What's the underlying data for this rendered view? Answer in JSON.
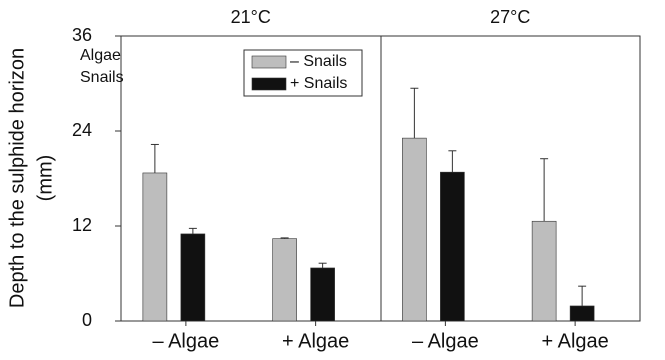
{
  "chart_data": {
    "type": "bar",
    "ylabel": [
      "Depth to the sulphide horizon",
      "(mm)"
    ],
    "ylim": [
      0,
      36
    ],
    "yticks": [
      0,
      12,
      24,
      36
    ],
    "annotations": [
      "Algae",
      "Snails"
    ],
    "categories": [
      "– Algae",
      "+ Algae"
    ],
    "series": [
      {
        "name": "– Snails",
        "color": "#bdbdbd"
      },
      {
        "name": "+ Snails",
        "color": "#111111"
      }
    ],
    "panels": [
      {
        "title": "21°C",
        "values": [
          [
            18.7,
            10.4
          ],
          [
            11.0,
            6.7
          ]
        ],
        "errors": [
          [
            3.6,
            0.1
          ],
          [
            0.7,
            0.6
          ]
        ]
      },
      {
        "title": "27°C",
        "values": [
          [
            23.1,
            12.6
          ],
          [
            18.8,
            1.9
          ]
        ],
        "errors": [
          [
            6.3,
            7.9
          ],
          [
            2.7,
            2.5
          ]
        ]
      }
    ]
  }
}
